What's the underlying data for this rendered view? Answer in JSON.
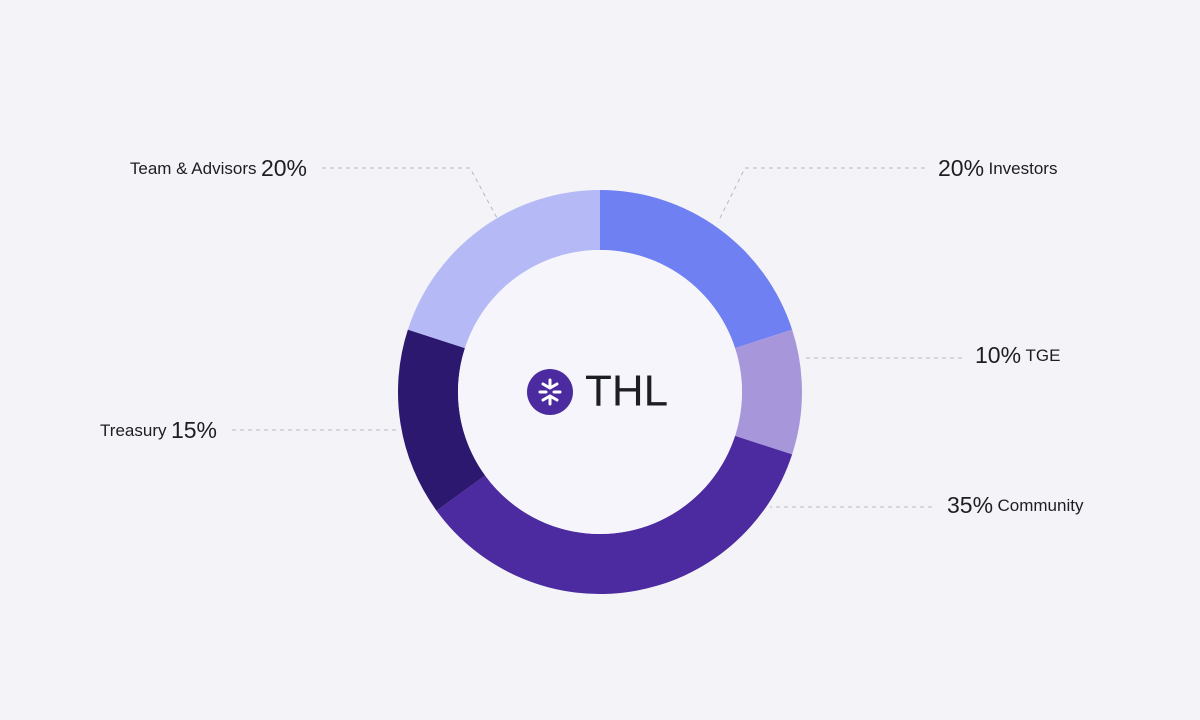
{
  "chart_data": {
    "type": "pie",
    "donut": true,
    "center_label": "THL",
    "categories": [
      "Investors",
      "TGE",
      "Community",
      "Treasury",
      "Team & Advisors"
    ],
    "values": [
      20,
      10,
      35,
      15,
      20
    ],
    "value_labels": [
      "20%",
      "10%",
      "35%",
      "15%",
      "20%"
    ],
    "colors": [
      "#6e80f2",
      "#a797da",
      "#4b2b9f",
      "#2d186f",
      "#b5baf6"
    ]
  }
}
